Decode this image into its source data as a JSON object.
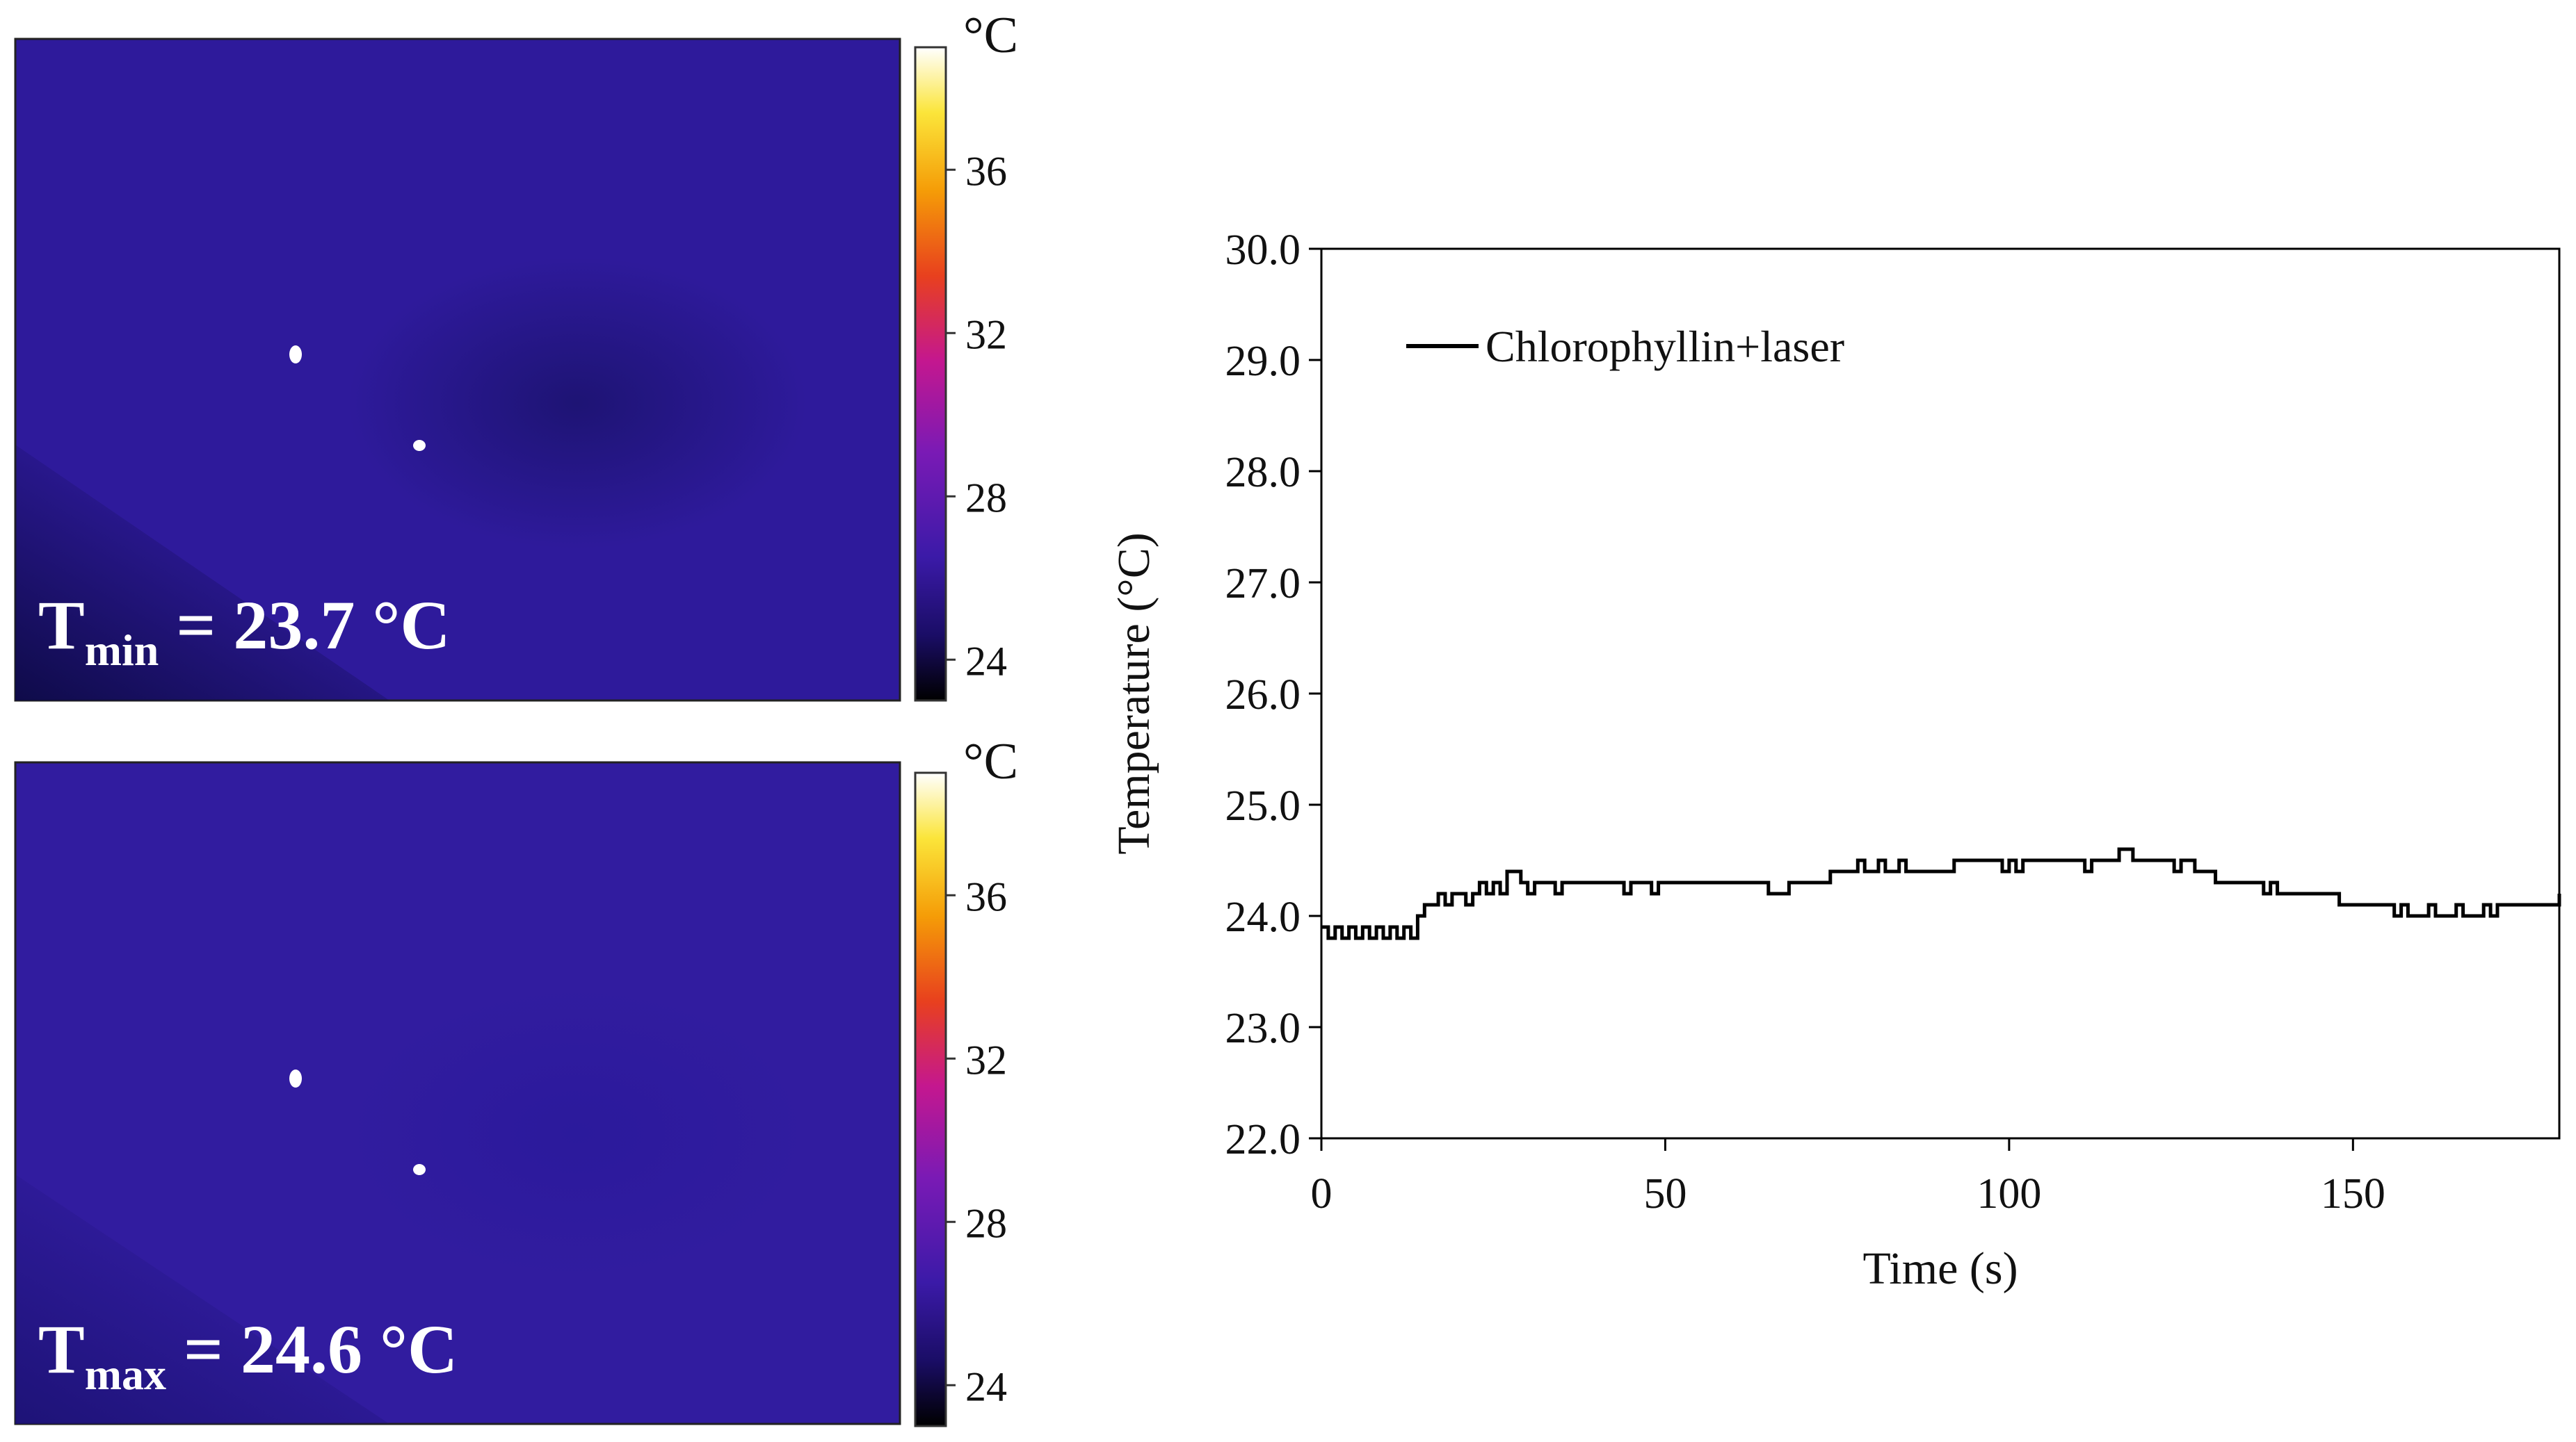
{
  "thermal_panels": [
    {
      "label_main": "T",
      "label_sub": "min",
      "label_value": " = 23.7 °C",
      "colorbar": {
        "unit": "°C",
        "ticks": [
          "36",
          "32",
          "28",
          "24"
        ],
        "tick_values": [
          36,
          32,
          28,
          24
        ],
        "range": [
          23,
          39
        ]
      }
    },
    {
      "label_main": "T",
      "label_sub": "max",
      "label_value": " = 24.6 °C",
      "colorbar": {
        "unit": "°C",
        "ticks": [
          "36",
          "32",
          "28",
          "24"
        ],
        "tick_values": [
          36,
          32,
          28,
          24
        ],
        "range": [
          23,
          39
        ]
      }
    }
  ],
  "colors": {
    "thermal_base": "#2e1a9b",
    "line": "#000000",
    "colormap": [
      "#000000",
      "#1a0d66",
      "#3b1aa8",
      "#7a1ab5",
      "#c4178f",
      "#e8401e",
      "#f59c07",
      "#fbe53a",
      "#ffffff"
    ]
  },
  "chart_data": {
    "type": "line",
    "title": "",
    "xlabel": "Time (s)",
    "ylabel": "Temperature (°C)",
    "xlim": [
      0,
      180
    ],
    "ylim": [
      22.0,
      30.0
    ],
    "xticks": [
      0,
      50,
      100,
      150
    ],
    "xtick_labels": [
      "0",
      "50",
      "100",
      "150"
    ],
    "yticks": [
      22.0,
      23.0,
      24.0,
      25.0,
      26.0,
      27.0,
      28.0,
      29.0,
      30.0
    ],
    "ytick_labels": [
      "22.0",
      "23.0",
      "24.0",
      "25.0",
      "26.0",
      "27.0",
      "28.0",
      "29.0",
      "30.0"
    ],
    "legend": "top-left",
    "series": [
      {
        "name": "Chlorophyllin+laser",
        "x": [
          0,
          1,
          2,
          3,
          4,
          5,
          6,
          7,
          8,
          9,
          10,
          11,
          12,
          13,
          14,
          15,
          16,
          17,
          18,
          19,
          20,
          21,
          22,
          23,
          24,
          25,
          26,
          27,
          28,
          29,
          30,
          31,
          32,
          33,
          34,
          35,
          36,
          37,
          38,
          39,
          40,
          41,
          42,
          43,
          44,
          45,
          46,
          47,
          48,
          49,
          50,
          51,
          52,
          53,
          54,
          55,
          56,
          57,
          58,
          59,
          60,
          61,
          62,
          63,
          64,
          65,
          66,
          67,
          68,
          69,
          70,
          71,
          72,
          73,
          74,
          75,
          76,
          77,
          78,
          79,
          80,
          81,
          82,
          83,
          84,
          85,
          86,
          87,
          88,
          89,
          90,
          91,
          92,
          93,
          94,
          95,
          96,
          97,
          98,
          99,
          100,
          101,
          102,
          103,
          104,
          105,
          106,
          107,
          108,
          109,
          110,
          111,
          112,
          113,
          114,
          115,
          116,
          117,
          118,
          119,
          120,
          121,
          122,
          123,
          124,
          125,
          126,
          127,
          128,
          129,
          130,
          131,
          132,
          133,
          134,
          135,
          136,
          137,
          138,
          139,
          140,
          141,
          142,
          143,
          144,
          145,
          146,
          147,
          148,
          149,
          150,
          151,
          152,
          153,
          154,
          155,
          156,
          157,
          158,
          159,
          160,
          161,
          162,
          163,
          164,
          165,
          166,
          167,
          168,
          169,
          170,
          171,
          172,
          173,
          174,
          175,
          176,
          177,
          178,
          179,
          180
        ],
        "values": [
          23.9,
          23.8,
          23.9,
          23.8,
          23.9,
          23.8,
          23.9,
          23.8,
          23.9,
          23.8,
          23.9,
          23.8,
          23.9,
          23.8,
          24.0,
          24.1,
          24.1,
          24.2,
          24.1,
          24.2,
          24.2,
          24.1,
          24.2,
          24.3,
          24.2,
          24.3,
          24.2,
          24.4,
          24.4,
          24.3,
          24.2,
          24.3,
          24.3,
          24.3,
          24.2,
          24.3,
          24.3,
          24.3,
          24.3,
          24.3,
          24.3,
          24.3,
          24.3,
          24.3,
          24.2,
          24.3,
          24.3,
          24.3,
          24.2,
          24.3,
          24.3,
          24.3,
          24.3,
          24.3,
          24.3,
          24.3,
          24.3,
          24.3,
          24.3,
          24.3,
          24.3,
          24.3,
          24.3,
          24.3,
          24.3,
          24.2,
          24.2,
          24.2,
          24.3,
          24.3,
          24.3,
          24.3,
          24.3,
          24.3,
          24.4,
          24.4,
          24.4,
          24.4,
          24.5,
          24.4,
          24.4,
          24.5,
          24.4,
          24.4,
          24.5,
          24.4,
          24.4,
          24.4,
          24.4,
          24.4,
          24.4,
          24.4,
          24.5,
          24.5,
          24.5,
          24.5,
          24.5,
          24.5,
          24.5,
          24.4,
          24.5,
          24.4,
          24.5,
          24.5,
          24.5,
          24.5,
          24.5,
          24.5,
          24.5,
          24.5,
          24.5,
          24.4,
          24.5,
          24.5,
          24.5,
          24.5,
          24.6,
          24.6,
          24.5,
          24.5,
          24.5,
          24.5,
          24.5,
          24.5,
          24.4,
          24.5,
          24.5,
          24.4,
          24.4,
          24.4,
          24.3,
          24.3,
          24.3,
          24.3,
          24.3,
          24.3,
          24.3,
          24.2,
          24.3,
          24.2,
          24.2,
          24.2,
          24.2,
          24.2,
          24.2,
          24.2,
          24.2,
          24.2,
          24.1,
          24.1,
          24.1,
          24.1,
          24.1,
          24.1,
          24.1,
          24.1,
          24.0,
          24.1,
          24.0,
          24.0,
          24.0,
          24.1,
          24.0,
          24.0,
          24.0,
          24.1,
          24.0,
          24.0,
          24.0,
          24.1,
          24.0,
          24.1,
          24.1,
          24.1,
          24.1,
          24.1,
          24.1,
          24.1,
          24.1,
          24.1,
          24.2
        ]
      }
    ]
  }
}
